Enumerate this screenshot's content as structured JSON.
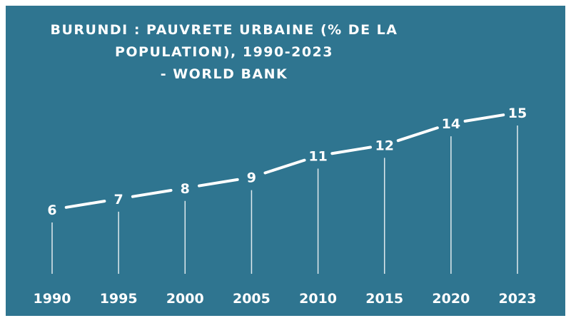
{
  "title": "BURUNDI : PAUVRETE URBAINE (% DE LA\nPOPULATION), 1990-2023\n- WORLD BANK",
  "colors": {
    "background": "#2f7590",
    "line": "#ffffff",
    "text": "#ffffff"
  },
  "chart_data": {
    "type": "line",
    "title": "BURUNDI : PAUVRETE URBAINE (% DE LA POPULATION), 1990-2023 - WORLD BANK",
    "xlabel": "",
    "ylabel": "",
    "categories": [
      "1990",
      "1995",
      "2000",
      "2005",
      "2010",
      "2015",
      "2020",
      "2023"
    ],
    "values": [
      6,
      7,
      8,
      9,
      11,
      12,
      14,
      15
    ],
    "data_labels": [
      "6",
      "7",
      "8",
      "9",
      "11",
      "12",
      "14",
      "15"
    ],
    "grid": false,
    "legend": "none"
  }
}
